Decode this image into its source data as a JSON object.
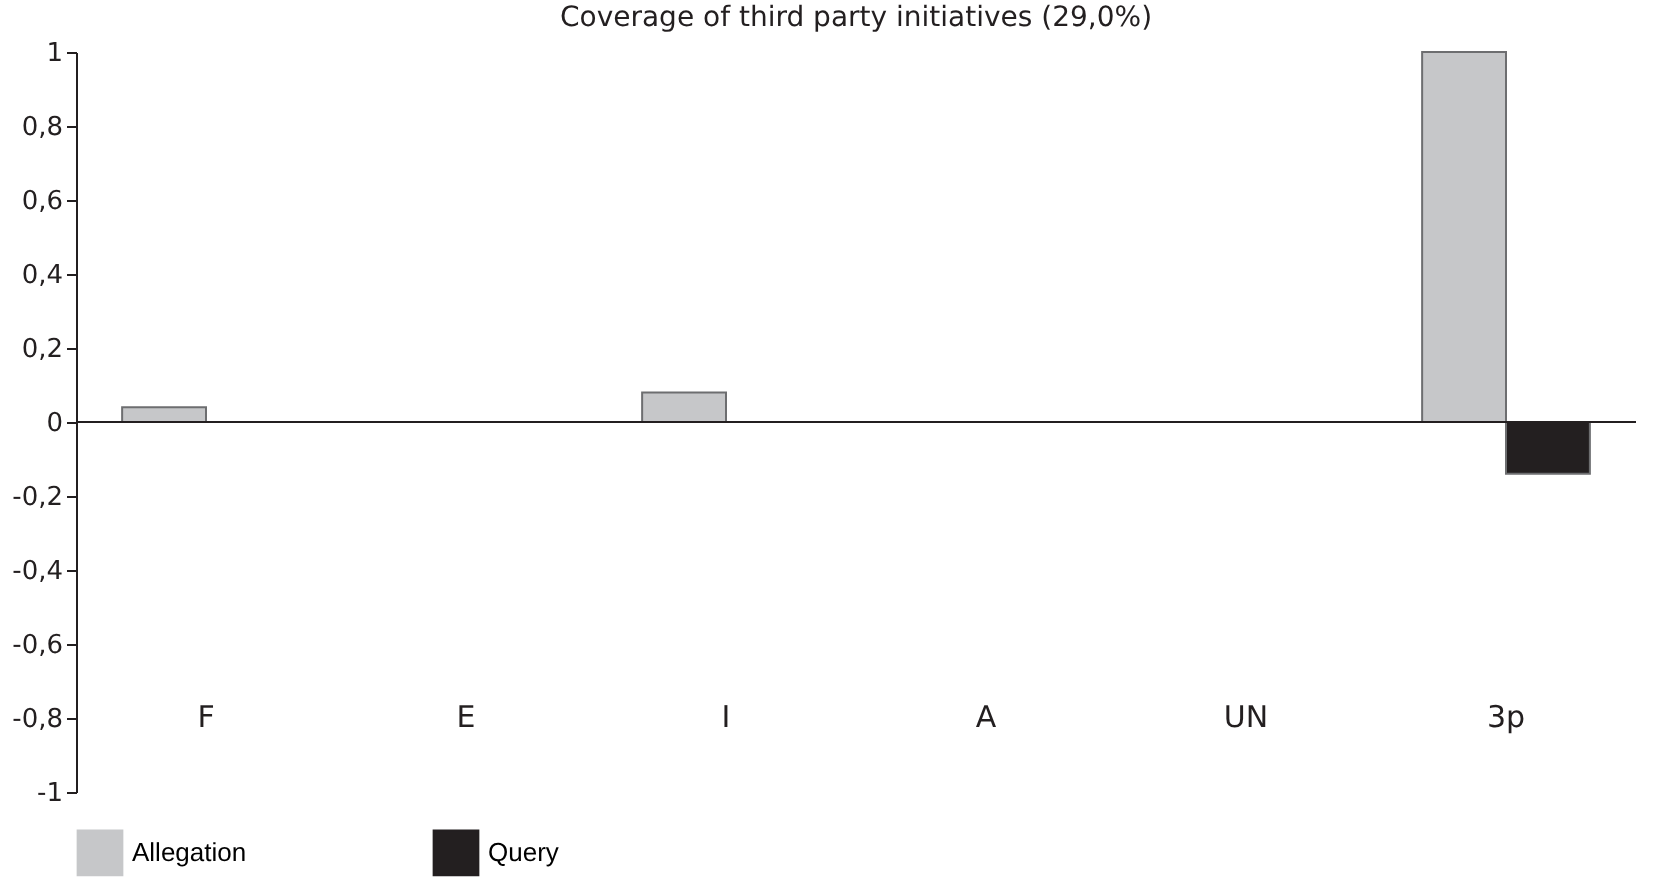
{
  "chart_data": {
    "type": "bar",
    "title": "Coverage of third party initiatives (29,0%)",
    "categories": [
      "F",
      "E",
      "I",
      "A",
      "UN",
      "3p"
    ],
    "series": [
      {
        "name": "Allegation",
        "color": "#c6c7c9",
        "values": [
          0.04,
          0,
          0.08,
          0,
          0,
          1.0
        ]
      },
      {
        "name": "Query",
        "color": "#231f20",
        "values": [
          0,
          0,
          0,
          0,
          0,
          -0.14
        ]
      }
    ],
    "ylim": [
      -1,
      1
    ],
    "yticks": [
      {
        "value": -1,
        "label": "-1"
      },
      {
        "value": -0.8,
        "label": "-0,8"
      },
      {
        "value": -0.6,
        "label": "-0,6"
      },
      {
        "value": -0.4,
        "label": "-0,4"
      },
      {
        "value": -0.2,
        "label": "-0,2"
      },
      {
        "value": 0,
        "label": "0"
      },
      {
        "value": 0.2,
        "label": "0,2"
      },
      {
        "value": 0.4,
        "label": "0,4"
      },
      {
        "value": 0.6,
        "label": "0,6"
      },
      {
        "value": 0.8,
        "label": "0,8"
      },
      {
        "value": 1,
        "label": "1"
      }
    ],
    "ref_lines": [
      {
        "axis": "y",
        "value": 0,
        "color": "#231f20"
      }
    ],
    "grid": false,
    "legend": "bottom"
  }
}
